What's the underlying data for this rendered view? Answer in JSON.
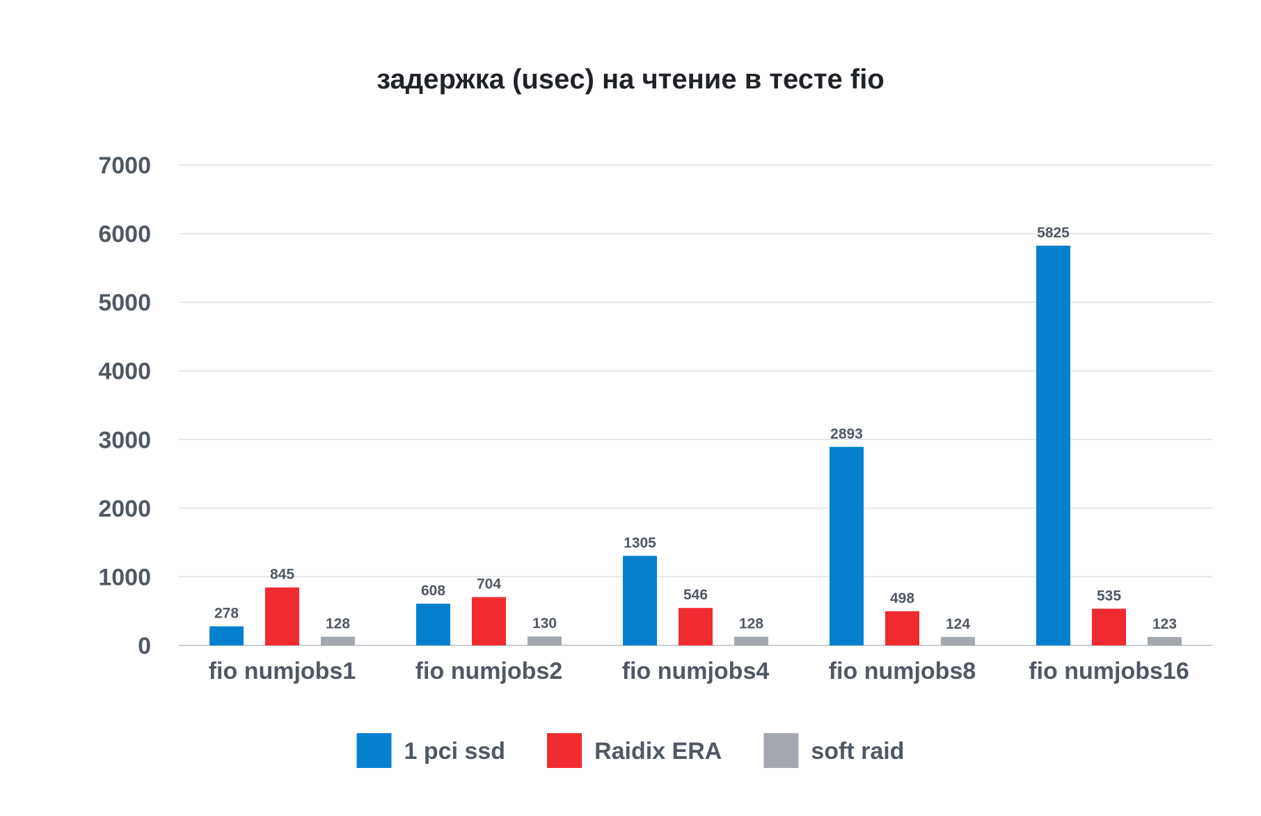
{
  "chart_data": {
    "type": "bar",
    "title": "задержка (usec) на чтение в тесте fio",
    "xlabel": "",
    "ylabel": "",
    "ylim": [
      0,
      7000
    ],
    "y_ticks": [
      "0",
      "1000",
      "2000",
      "3000",
      "4000",
      "5000",
      "6000",
      "7000"
    ],
    "grid": true,
    "legend_position": "bottom",
    "categories": [
      "fio numjobs1",
      "fio numjobs2",
      "fio numjobs4",
      "fio numjobs8",
      "fio numjobs16"
    ],
    "series": [
      {
        "name": "1 pci ssd",
        "color": "#0580cf",
        "values": [
          278,
          608,
          1305,
          2893,
          5825
        ]
      },
      {
        "name": "Raidix ERA",
        "color": "#ef2b2f",
        "values": [
          845,
          704,
          546,
          498,
          535
        ]
      },
      {
        "name": "soft raid",
        "color": "#a3a8ae",
        "values": [
          128,
          130,
          128,
          124,
          123
        ]
      }
    ],
    "gridline_color": "#dde1e5",
    "axis_color": "#c8cdd2"
  }
}
